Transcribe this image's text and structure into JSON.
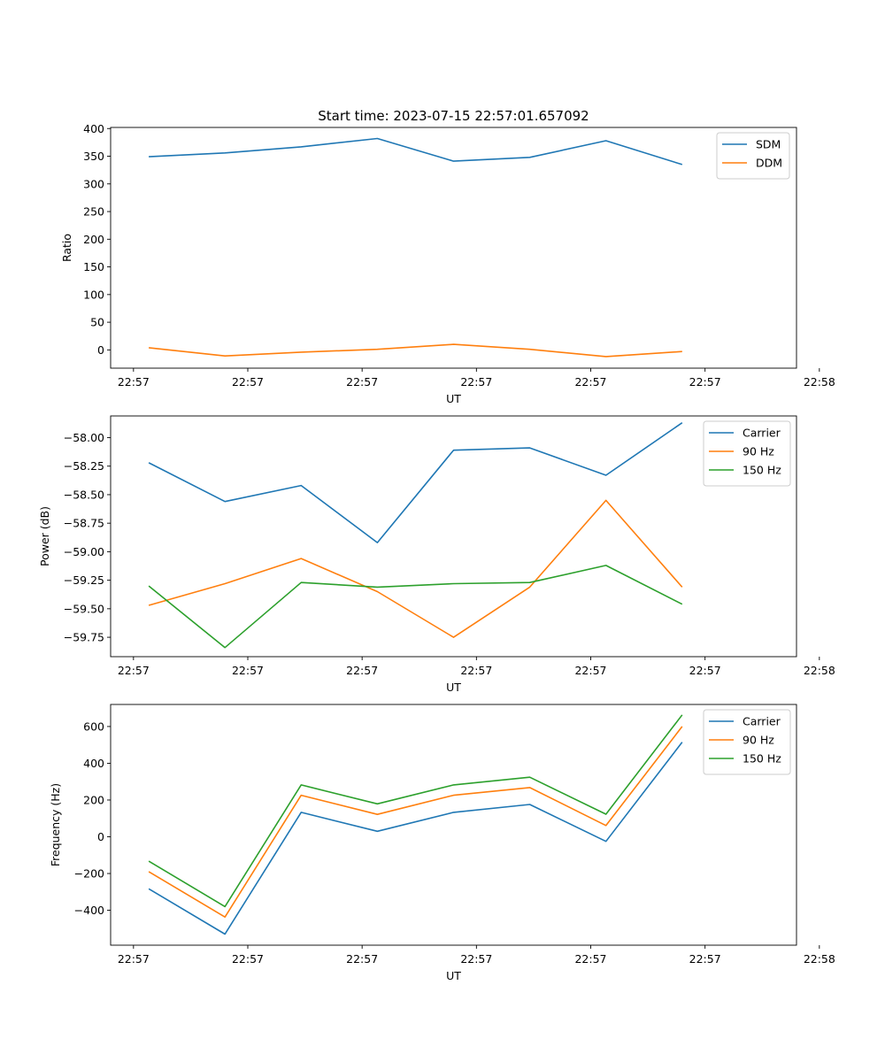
{
  "colors": {
    "c0": "#1f77b4",
    "c1": "#ff7f0e",
    "c2": "#2ca02c"
  },
  "chart_data": [
    {
      "type": "line",
      "title": "Start time: 2023-07-15 22:57:01.657092",
      "xlabel": "UT",
      "ylabel": "Ratio",
      "x": [
        0,
        1,
        2,
        3,
        4,
        5,
        6,
        7
      ],
      "xlim": [
        -0.5,
        8.5
      ],
      "xticks": [
        -0.2,
        1.3,
        2.8,
        4.3,
        5.8,
        7.3,
        8.8
      ],
      "xticklabels": [
        "22:57",
        "22:57",
        "22:57",
        "22:57",
        "22:57",
        "22:57",
        "22:58"
      ],
      "ylim": [
        -33,
        402
      ],
      "yticks": [
        0,
        50,
        100,
        150,
        200,
        250,
        300,
        350,
        400
      ],
      "yticklabels": [
        "0",
        "50",
        "100",
        "150",
        "200",
        "250",
        "300",
        "350",
        "400"
      ],
      "legend_position": "top-right",
      "series": [
        {
          "name": "SDM",
          "values": [
            349,
            356,
            367,
            382,
            341,
            348,
            378,
            335
          ]
        },
        {
          "name": "DDM",
          "values": [
            4,
            -11,
            -4,
            1,
            10,
            1,
            -12,
            -3
          ]
        }
      ]
    },
    {
      "type": "line",
      "title": "",
      "xlabel": "UT",
      "ylabel": "Power (dB)",
      "x": [
        0,
        1,
        2,
        3,
        4,
        5,
        6,
        7
      ],
      "xlim": [
        -0.5,
        8.5
      ],
      "xticks": [
        -0.2,
        1.3,
        2.8,
        4.3,
        5.8,
        7.3,
        8.8
      ],
      "xticklabels": [
        "22:57",
        "22:57",
        "22:57",
        "22:57",
        "22:57",
        "22:57",
        "22:58"
      ],
      "ylim": [
        -59.92,
        -57.81
      ],
      "yticks": [
        -59.75,
        -59.5,
        -59.25,
        -59.0,
        -58.75,
        -58.5,
        -58.25,
        -58.0
      ],
      "yticklabels": [
        "−59.75",
        "−59.50",
        "−59.25",
        "−59.00",
        "−58.75",
        "−58.50",
        "−58.25",
        "−58.00"
      ],
      "legend_position": "top-right",
      "series": [
        {
          "name": "Carrier",
          "values": [
            -58.22,
            -58.56,
            -58.42,
            -58.92,
            -58.11,
            -58.09,
            -58.33,
            -57.87
          ]
        },
        {
          "name": "90 Hz",
          "values": [
            -59.47,
            -59.28,
            -59.06,
            -59.35,
            -59.75,
            -59.31,
            -58.55,
            -59.31
          ]
        },
        {
          "name": "150 Hz",
          "values": [
            -59.3,
            -59.84,
            -59.27,
            -59.31,
            -59.28,
            -59.27,
            -59.12,
            -59.46
          ]
        }
      ]
    },
    {
      "type": "line",
      "title": "",
      "xlabel": "UT",
      "ylabel": "Frequency (Hz)",
      "x": [
        0,
        1,
        2,
        3,
        4,
        5,
        6,
        7
      ],
      "xlim": [
        -0.5,
        8.5
      ],
      "xticks": [
        -0.2,
        1.3,
        2.8,
        4.3,
        5.8,
        7.3,
        8.8
      ],
      "xticklabels": [
        "22:57",
        "22:57",
        "22:57",
        "22:57",
        "22:57",
        "22:57",
        "22:58"
      ],
      "ylim": [
        -590,
        720
      ],
      "yticks": [
        -400,
        -200,
        0,
        200,
        400,
        600
      ],
      "yticklabels": [
        "−400",
        "−200",
        "0",
        "200",
        "400",
        "600"
      ],
      "legend_position": "top-right",
      "series": [
        {
          "name": "Carrier",
          "values": [
            -283,
            -530,
            133,
            30,
            133,
            176,
            -25,
            515
          ]
        },
        {
          "name": "90 Hz",
          "values": [
            -190,
            -437,
            226,
            122,
            226,
            268,
            61,
            600
          ]
        },
        {
          "name": "150 Hz",
          "values": [
            -133,
            -380,
            282,
            179,
            282,
            324,
            123,
            663
          ]
        }
      ]
    }
  ]
}
